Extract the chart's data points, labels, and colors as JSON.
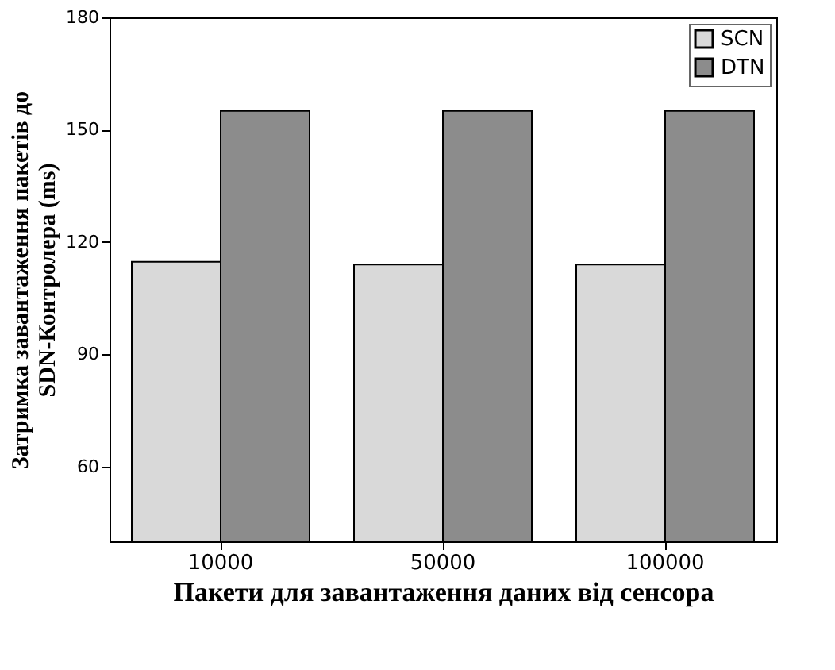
{
  "chart_data": {
    "type": "bar",
    "xlabel": "Пакети для завантаження даних від сенсора",
    "ylabel": "Затримка завантаження пакетів до SDN-Контролера (ms)",
    "categories": [
      "10000",
      "50000",
      "100000"
    ],
    "series": [
      {
        "name": "SCN",
        "color": "#d9d9d9",
        "values": [
          114.7,
          114.0,
          114.0
        ]
      },
      {
        "name": "DTN",
        "color": "#8c8c8c",
        "values": [
          155,
          155,
          155
        ]
      }
    ],
    "ylim": [
      40,
      180
    ],
    "yticks": [
      60,
      90,
      120,
      150,
      180
    ],
    "grid": false,
    "legend": "top right"
  }
}
